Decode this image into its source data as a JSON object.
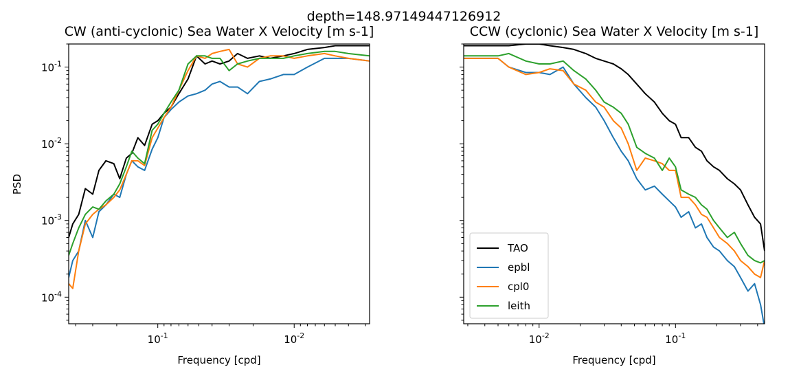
{
  "suptitle": "depth=148.97149447126912",
  "colors": {
    "TAO": "#000000",
    "epbl": "#1f77b4",
    "cpl0": "#ff7f0e",
    "leith": "#2ca02c"
  },
  "chart_data": [
    {
      "type": "line",
      "panel": "left",
      "title": "CW (anti-cyclonic) Sea Water X Velocity [m s-1]",
      "xlabel": "Frequency [cpd]",
      "ylabel": "PSD",
      "xscale": "log",
      "yscale": "log",
      "x_inverted": true,
      "xlim": [
        0.45,
        0.0028
      ],
      "ylim": [
        4.5e-05,
        0.2
      ],
      "grid": false,
      "legend": null,
      "x_ticks": [
        {
          "value": 0.1,
          "label": "10^-1"
        },
        {
          "value": 0.01,
          "label": "10^-2"
        }
      ],
      "y_ticks": [
        {
          "value": 0.1,
          "label": "10^-1"
        },
        {
          "value": 0.01,
          "label": "10^-2"
        },
        {
          "value": 0.001,
          "label": "10^-3"
        },
        {
          "value": 0.0001,
          "label": "10^-4"
        }
      ],
      "series": [
        {
          "name": "TAO",
          "x": [
            0.45,
            0.42,
            0.38,
            0.34,
            0.3,
            0.27,
            0.24,
            0.21,
            0.19,
            0.17,
            0.155,
            0.14,
            0.125,
            0.11,
            0.1,
            0.09,
            0.08,
            0.07,
            0.06,
            0.052,
            0.045,
            0.04,
            0.035,
            0.03,
            0.026,
            0.022,
            0.018,
            0.015,
            0.012,
            0.01,
            0.008,
            0.006,
            0.005,
            0.004,
            0.0028
          ],
          "y": [
            0.0006,
            0.0009,
            0.0012,
            0.0026,
            0.0022,
            0.0045,
            0.006,
            0.0055,
            0.0035,
            0.0065,
            0.0075,
            0.012,
            0.0095,
            0.018,
            0.02,
            0.025,
            0.03,
            0.045,
            0.07,
            0.14,
            0.11,
            0.12,
            0.11,
            0.12,
            0.15,
            0.13,
            0.14,
            0.13,
            0.14,
            0.15,
            0.17,
            0.18,
            0.19,
            0.19,
            0.19
          ]
        },
        {
          "name": "epbl",
          "x": [
            0.45,
            0.42,
            0.38,
            0.34,
            0.3,
            0.27,
            0.24,
            0.21,
            0.19,
            0.17,
            0.155,
            0.14,
            0.125,
            0.11,
            0.1,
            0.09,
            0.08,
            0.07,
            0.06,
            0.052,
            0.045,
            0.04,
            0.035,
            0.03,
            0.026,
            0.022,
            0.018,
            0.015,
            0.012,
            0.01,
            0.008,
            0.006,
            0.005,
            0.004,
            0.0028
          ],
          "y": [
            0.00018,
            0.0003,
            0.0004,
            0.001,
            0.0006,
            0.0013,
            0.0016,
            0.0022,
            0.002,
            0.004,
            0.006,
            0.005,
            0.0045,
            0.0085,
            0.012,
            0.022,
            0.028,
            0.035,
            0.042,
            0.045,
            0.05,
            0.06,
            0.065,
            0.055,
            0.055,
            0.045,
            0.065,
            0.07,
            0.08,
            0.08,
            0.1,
            0.13,
            0.13,
            0.13,
            0.12
          ]
        },
        {
          "name": "cpl0",
          "x": [
            0.45,
            0.42,
            0.38,
            0.34,
            0.3,
            0.27,
            0.24,
            0.21,
            0.19,
            0.17,
            0.155,
            0.14,
            0.125,
            0.11,
            0.1,
            0.09,
            0.08,
            0.07,
            0.06,
            0.052,
            0.045,
            0.04,
            0.035,
            0.03,
            0.026,
            0.022,
            0.018,
            0.015,
            0.012,
            0.01,
            0.008,
            0.006,
            0.005,
            0.004,
            0.0028
          ],
          "y": [
            0.00015,
            0.00013,
            0.0004,
            0.0009,
            0.0012,
            0.0014,
            0.0016,
            0.002,
            0.0025,
            0.004,
            0.006,
            0.006,
            0.0052,
            0.012,
            0.016,
            0.022,
            0.03,
            0.05,
            0.09,
            0.14,
            0.13,
            0.15,
            0.16,
            0.17,
            0.11,
            0.1,
            0.13,
            0.14,
            0.14,
            0.13,
            0.14,
            0.15,
            0.14,
            0.13,
            0.12
          ]
        },
        {
          "name": "leith",
          "x": [
            0.45,
            0.42,
            0.38,
            0.34,
            0.3,
            0.27,
            0.24,
            0.21,
            0.19,
            0.17,
            0.155,
            0.14,
            0.125,
            0.11,
            0.1,
            0.09,
            0.08,
            0.07,
            0.06,
            0.052,
            0.045,
            0.04,
            0.035,
            0.03,
            0.026,
            0.022,
            0.018,
            0.015,
            0.012,
            0.01,
            0.008,
            0.006,
            0.005,
            0.004,
            0.0028
          ],
          "y": [
            0.00035,
            0.0005,
            0.0008,
            0.0012,
            0.0015,
            0.0014,
            0.0018,
            0.0022,
            0.003,
            0.005,
            0.008,
            0.0065,
            0.0055,
            0.015,
            0.018,
            0.025,
            0.035,
            0.05,
            0.11,
            0.14,
            0.14,
            0.13,
            0.13,
            0.09,
            0.11,
            0.12,
            0.13,
            0.13,
            0.13,
            0.14,
            0.15,
            0.16,
            0.16,
            0.15,
            0.14
          ]
        }
      ]
    },
    {
      "type": "line",
      "panel": "right",
      "title": "CCW (cyclonic) Sea Water X Velocity [m s-1]",
      "xlabel": "Frequency [cpd]",
      "ylabel": "",
      "xscale": "log",
      "yscale": "log",
      "xlim": [
        0.0028,
        0.45
      ],
      "ylim": [
        4.5e-05,
        0.2
      ],
      "grid": false,
      "legend": "lower left",
      "x_ticks": [
        {
          "value": 0.01,
          "label": "10^-2"
        },
        {
          "value": 0.1,
          "label": "10^-1"
        }
      ],
      "series": [
        {
          "name": "TAO",
          "x": [
            0.0028,
            0.004,
            0.005,
            0.006,
            0.008,
            0.01,
            0.012,
            0.015,
            0.018,
            0.022,
            0.026,
            0.03,
            0.035,
            0.04,
            0.045,
            0.052,
            0.06,
            0.07,
            0.08,
            0.09,
            0.1,
            0.11,
            0.125,
            0.14,
            0.155,
            0.17,
            0.19,
            0.21,
            0.24,
            0.27,
            0.3,
            0.34,
            0.38,
            0.42,
            0.45
          ],
          "y": [
            0.19,
            0.19,
            0.19,
            0.19,
            0.2,
            0.2,
            0.19,
            0.18,
            0.17,
            0.15,
            0.13,
            0.12,
            0.11,
            0.095,
            0.08,
            0.06,
            0.045,
            0.035,
            0.025,
            0.02,
            0.018,
            0.012,
            0.012,
            0.009,
            0.008,
            0.006,
            0.005,
            0.0045,
            0.0035,
            0.003,
            0.0025,
            0.0016,
            0.0011,
            0.0009,
            0.0004
          ]
        },
        {
          "name": "epbl",
          "x": [
            0.0028,
            0.004,
            0.005,
            0.006,
            0.008,
            0.01,
            0.012,
            0.015,
            0.018,
            0.022,
            0.026,
            0.03,
            0.035,
            0.04,
            0.045,
            0.052,
            0.06,
            0.07,
            0.08,
            0.09,
            0.1,
            0.11,
            0.125,
            0.14,
            0.155,
            0.17,
            0.19,
            0.21,
            0.24,
            0.27,
            0.3,
            0.34,
            0.38,
            0.42,
            0.45
          ],
          "y": [
            0.13,
            0.13,
            0.13,
            0.1,
            0.085,
            0.085,
            0.08,
            0.1,
            0.06,
            0.04,
            0.03,
            0.02,
            0.012,
            0.008,
            0.006,
            0.0035,
            0.0025,
            0.0028,
            0.0022,
            0.0018,
            0.0015,
            0.0011,
            0.0013,
            0.0008,
            0.0009,
            0.0006,
            0.00045,
            0.0004,
            0.0003,
            0.00025,
            0.00018,
            0.00012,
            0.00015,
            8e-05,
            4e-05
          ]
        },
        {
          "name": "cpl0",
          "x": [
            0.0028,
            0.004,
            0.005,
            0.006,
            0.008,
            0.01,
            0.012,
            0.015,
            0.018,
            0.022,
            0.026,
            0.03,
            0.035,
            0.04,
            0.045,
            0.052,
            0.06,
            0.07,
            0.08,
            0.09,
            0.1,
            0.11,
            0.125,
            0.14,
            0.155,
            0.17,
            0.19,
            0.21,
            0.24,
            0.27,
            0.3,
            0.34,
            0.38,
            0.42,
            0.45
          ],
          "y": [
            0.13,
            0.13,
            0.13,
            0.1,
            0.08,
            0.085,
            0.095,
            0.09,
            0.06,
            0.05,
            0.035,
            0.03,
            0.02,
            0.016,
            0.01,
            0.0045,
            0.0065,
            0.006,
            0.0055,
            0.0045,
            0.0045,
            0.002,
            0.002,
            0.0016,
            0.0012,
            0.0011,
            0.0008,
            0.0006,
            0.0005,
            0.0004,
            0.0003,
            0.00025,
            0.0002,
            0.00018,
            0.0003
          ]
        },
        {
          "name": "leith",
          "x": [
            0.0028,
            0.004,
            0.005,
            0.006,
            0.008,
            0.01,
            0.012,
            0.015,
            0.018,
            0.022,
            0.026,
            0.03,
            0.035,
            0.04,
            0.045,
            0.052,
            0.06,
            0.07,
            0.08,
            0.09,
            0.1,
            0.11,
            0.125,
            0.14,
            0.155,
            0.17,
            0.19,
            0.21,
            0.24,
            0.27,
            0.3,
            0.34,
            0.38,
            0.42,
            0.45
          ],
          "y": [
            0.14,
            0.14,
            0.14,
            0.15,
            0.12,
            0.11,
            0.11,
            0.12,
            0.09,
            0.07,
            0.05,
            0.035,
            0.03,
            0.025,
            0.018,
            0.009,
            0.0075,
            0.0065,
            0.0045,
            0.0065,
            0.005,
            0.0025,
            0.0022,
            0.002,
            0.0016,
            0.0014,
            0.001,
            0.0008,
            0.0006,
            0.0007,
            0.0005,
            0.00035,
            0.0003,
            0.00028,
            0.0003
          ]
        }
      ]
    }
  ]
}
